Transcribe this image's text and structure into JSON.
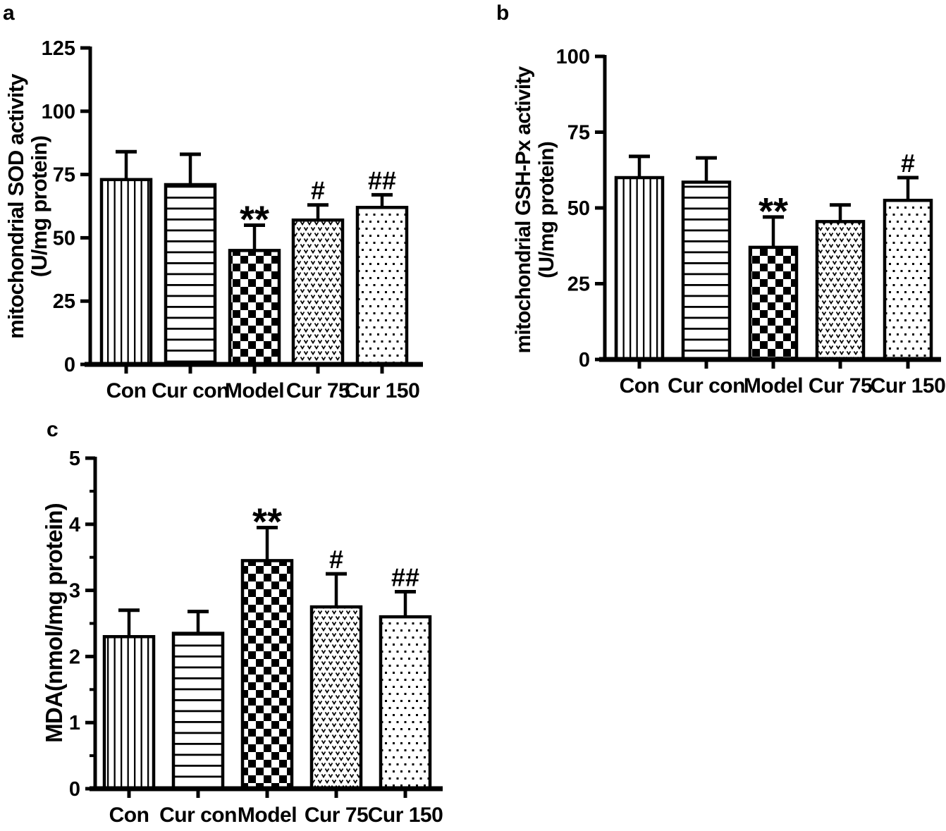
{
  "colors": {
    "ink": "#000000",
    "background": "#ffffff"
  },
  "panel_letters": {
    "a": "a",
    "b": "b",
    "c": "c"
  },
  "chart_data": [
    {
      "panel_label": "a",
      "type": "bar",
      "ylabel": "mitochondrial SOD activity (U/mg protein)",
      "ylabel_lines": [
        "mitochondrial SOD activity",
        "(U/mg protein)"
      ],
      "categories": [
        "Con",
        "Cur con",
        "Model",
        "Cur 75",
        "Cur 150"
      ],
      "values": [
        73,
        71,
        45,
        57,
        62
      ],
      "errors": [
        11,
        12,
        10,
        6,
        5
      ],
      "significance": [
        "",
        "",
        "**",
        "#",
        "##"
      ],
      "bar_patterns": [
        "vertical-stripes",
        "horizontal-stripes",
        "checkerboard",
        "v-dots",
        "dots"
      ],
      "ylim": [
        0,
        125
      ],
      "yticks": [
        0,
        25,
        50,
        75,
        100,
        125
      ],
      "minor_tick_step": null,
      "error_bar_style": "upper-cap",
      "grid": false,
      "legend": "none"
    },
    {
      "panel_label": "b",
      "type": "bar",
      "ylabel": "mitochondrial GSH-Px activity (U/mg protein)",
      "ylabel_lines": [
        "mitochondrial GSH-Px activity",
        "(U/mg protein)"
      ],
      "categories": [
        "Con",
        "Cur con",
        "Model",
        "Cur 75",
        "Cur 150"
      ],
      "values": [
        60,
        58.5,
        37,
        45.5,
        52.5
      ],
      "errors": [
        7,
        8,
        10,
        5.5,
        7.5
      ],
      "significance": [
        "",
        "",
        "**",
        "",
        "#"
      ],
      "bar_patterns": [
        "vertical-stripes",
        "horizontal-stripes",
        "checkerboard",
        "v-dots",
        "dots"
      ],
      "ylim": [
        0,
        100
      ],
      "yticks": [
        0,
        25,
        50,
        75,
        100
      ],
      "minor_tick_step": null,
      "error_bar_style": "upper-cap",
      "grid": false,
      "legend": "none"
    },
    {
      "panel_label": "c",
      "type": "bar",
      "ylabel": "MDA(nmol/mg protein)",
      "ylabel_lines": [
        "MDA(nmol/mg protein)"
      ],
      "categories": [
        "Con",
        "Cur con",
        "Model",
        "Cur 75",
        "Cur 150"
      ],
      "values": [
        2.3,
        2.35,
        3.45,
        2.75,
        2.6
      ],
      "errors": [
        0.4,
        0.33,
        0.5,
        0.5,
        0.38
      ],
      "significance": [
        "",
        "",
        "**",
        "#",
        "##"
      ],
      "bar_patterns": [
        "vertical-stripes",
        "horizontal-stripes",
        "checkerboard",
        "v-dots",
        "dots"
      ],
      "ylim": [
        0,
        5
      ],
      "yticks": [
        0,
        1,
        2,
        3,
        4,
        5
      ],
      "minor_tick_step": 0.5,
      "error_bar_style": "upper-cap",
      "grid": false,
      "legend": "none"
    }
  ]
}
